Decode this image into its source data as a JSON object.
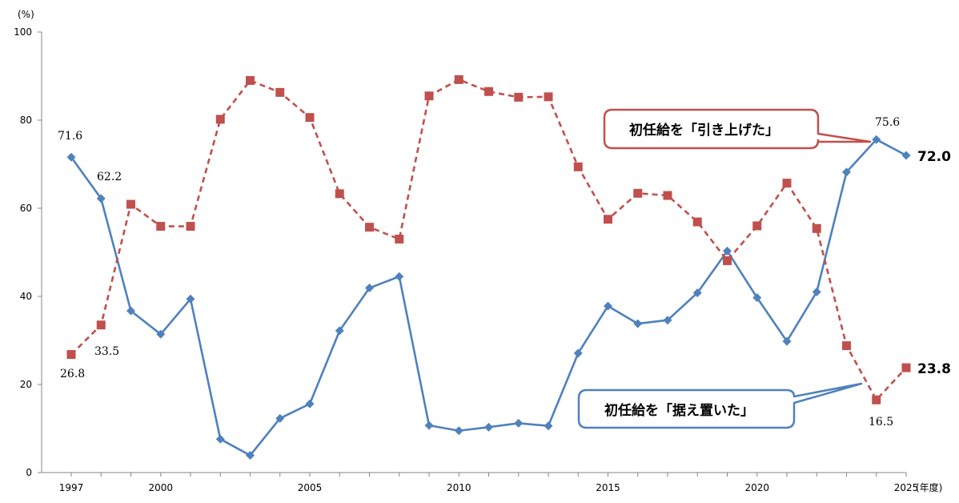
{
  "chart_data": {
    "type": "line",
    "yunit": "(%)",
    "xunit": "(年度)",
    "ylim": [
      0,
      100
    ],
    "yticks": [
      0,
      20,
      40,
      60,
      80,
      100
    ],
    "xlim": [
      1997,
      2025
    ],
    "xticks": [
      1997,
      2000,
      2005,
      2010,
      2015,
      2020,
      2025
    ],
    "grid": false,
    "x": [
      1997,
      1998,
      1999,
      2000,
      2001,
      2002,
      2003,
      2004,
      2005,
      2006,
      2007,
      2008,
      2009,
      2010,
      2011,
      2012,
      2013,
      2014,
      2015,
      2016,
      2017,
      2018,
      2019,
      2020,
      2021,
      2022,
      2023,
      2024,
      2025
    ],
    "series": [
      {
        "name": "初任給を「引き上げた」",
        "color": "#4f81bd",
        "style": "solid",
        "marker": "diamond",
        "values": [
          71.6,
          62.2,
          36.7,
          31.4,
          39.4,
          7.6,
          3.9,
          12.3,
          15.6,
          32.2,
          41.9,
          44.5,
          10.7,
          9.5,
          10.3,
          11.2,
          10.6,
          27.1,
          37.8,
          33.8,
          34.6,
          40.8,
          50.3,
          39.7,
          29.8,
          41.0,
          68.2,
          75.6,
          72.0
        ]
      },
      {
        "name": "初任給を「据え置いた」",
        "color": "#c0504d",
        "style": "dashed",
        "marker": "square",
        "values": [
          26.8,
          33.5,
          60.9,
          55.9,
          55.9,
          80.2,
          89.0,
          86.3,
          80.6,
          63.3,
          55.7,
          53.0,
          85.5,
          89.2,
          86.5,
          85.2,
          85.3,
          69.4,
          57.5,
          63.4,
          62.9,
          56.9,
          48.1,
          56.0,
          65.7,
          55.4,
          28.8,
          16.5,
          23.8
        ]
      }
    ],
    "data_labels": [
      {
        "text": "71.6"
      },
      {
        "text": "62.2"
      },
      {
        "text": "33.5"
      },
      {
        "text": "26.8"
      },
      {
        "text": "75.6"
      },
      {
        "text": "72.0"
      },
      {
        "text": "16.5"
      },
      {
        "text": "23.8"
      }
    ]
  },
  "callouts": {
    "up": "初任給を「引き上げた」",
    "flat": "初任給を「据え置いた」"
  }
}
